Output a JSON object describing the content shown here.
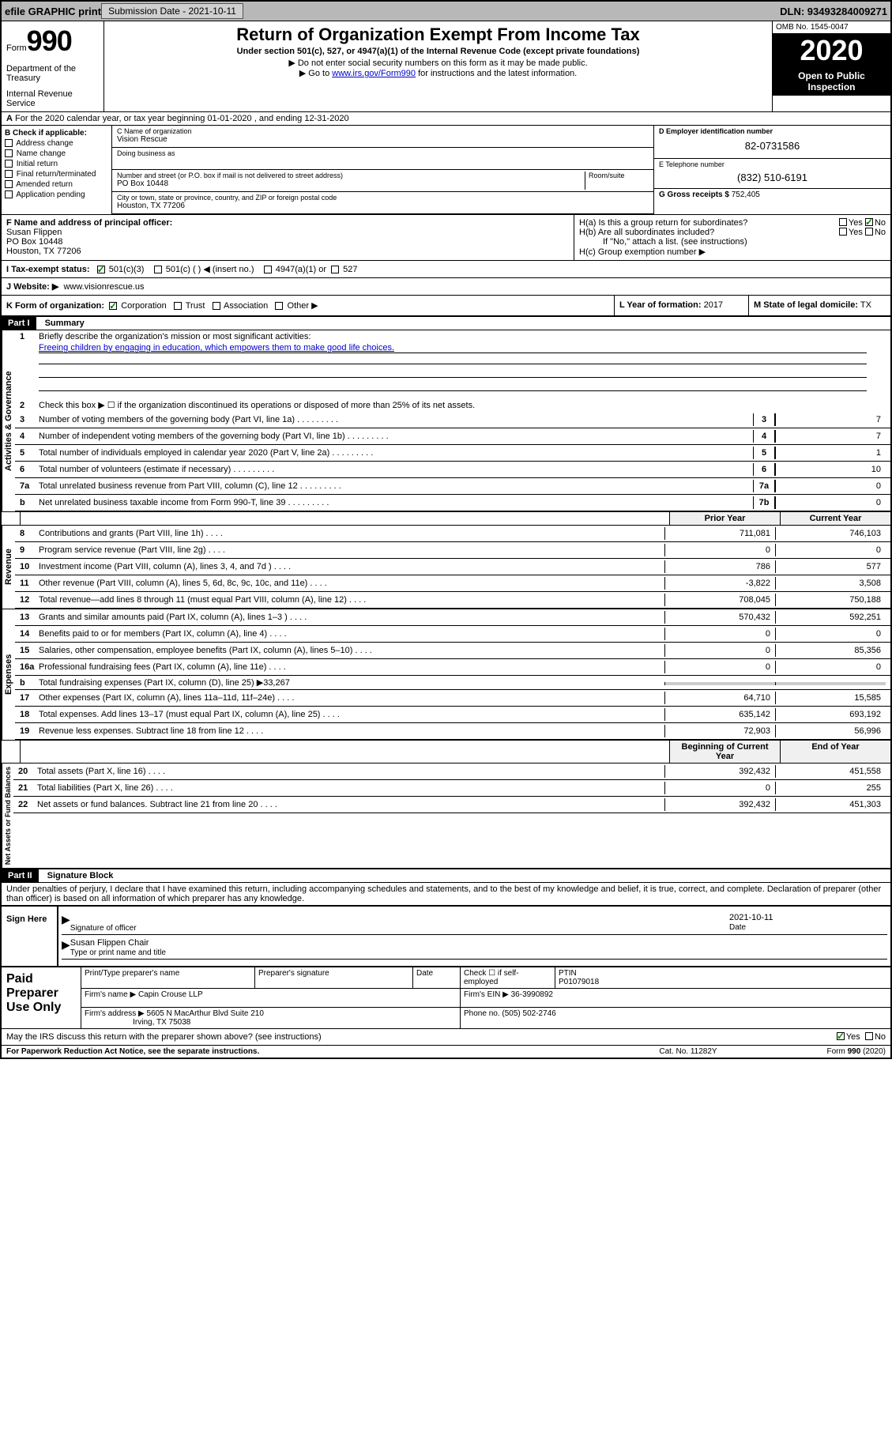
{
  "topbar": {
    "efile": "efile GRAPHIC print",
    "submission_label": "Submission Date - 2021-10-11",
    "dln": "DLN: 93493284009271"
  },
  "header": {
    "form_word": "Form",
    "form_num": "990",
    "title": "Return of Organization Exempt From Income Tax",
    "subtitle": "Under section 501(c), 527, or 4947(a)(1) of the Internal Revenue Code (except private foundations)",
    "note1": "▶ Do not enter social security numbers on this form as it may be made public.",
    "note2_pre": "▶ Go to ",
    "note2_link": "www.irs.gov/Form990",
    "note2_post": " for instructions and the latest information.",
    "dept": "Department of the Treasury",
    "irs": "Internal Revenue Service",
    "omb": "OMB No. 1545-0047",
    "year": "2020",
    "inspection": "Open to Public Inspection"
  },
  "line_a": "For the 2020 calendar year, or tax year beginning 01-01-2020    , and ending 12-31-2020",
  "section_b": {
    "label": "B Check if applicable:",
    "items": [
      "Address change",
      "Name change",
      "Initial return",
      "Final return/terminated",
      "Amended return",
      "Application pending"
    ]
  },
  "section_c": {
    "label": "C Name of organization",
    "org": "Vision Rescue",
    "dba_label": "Doing business as",
    "addr_label": "Number and street (or P.O. box if mail is not delivered to street address)",
    "room_label": "Room/suite",
    "addr": "PO Box 10448",
    "city_label": "City or town, state or province, country, and ZIP or foreign postal code",
    "city": "Houston, TX  77206"
  },
  "section_d": {
    "label": "D Employer identification number",
    "ein": "82-0731586",
    "tel_label": "E Telephone number",
    "tel": "(832) 510-6191",
    "gross_label": "G Gross receipts $",
    "gross": "752,405"
  },
  "section_f": {
    "label": "F  Name and address of principal officer:",
    "name": "Susan Flippen",
    "addr": "PO Box 10448",
    "city": "Houston, TX  77206"
  },
  "section_h": {
    "a": "H(a)  Is this a group return for subordinates?",
    "b": "H(b)  Are all subordinates included?",
    "b_note": "If \"No,\" attach a list. (see instructions)",
    "c": "H(c)  Group exemption number ▶",
    "yes": "Yes",
    "no": "No"
  },
  "tax_status": {
    "label": "I   Tax-exempt status:",
    "opt1": "501(c)(3)",
    "opt2": "501(c) (   ) ◀ (insert no.)",
    "opt3": "4947(a)(1) or",
    "opt4": "527"
  },
  "website": {
    "label": "J   Website: ▶",
    "val": "www.visionrescue.us"
  },
  "kform": {
    "label": "K Form of organization:",
    "opts": [
      "Corporation",
      "Trust",
      "Association",
      "Other ▶"
    ],
    "l_label": "L Year of formation:",
    "l_val": "2017",
    "m_label": "M State of legal domicile:",
    "m_val": "TX"
  },
  "part1": {
    "header": "Part I",
    "title": "Summary",
    "line1": "Briefly describe the organization's mission or most significant activities:",
    "mission": "Freeing children by engaging in education, which empowers them to make good life choices.",
    "line2": "Check this box ▶ ☐  if the organization discontinued its operations or disposed of more than 25% of its net assets.",
    "lines": [
      {
        "n": "3",
        "t": "Number of voting members of the governing body (Part VI, line 1a)",
        "box": "3",
        "v": "7"
      },
      {
        "n": "4",
        "t": "Number of independent voting members of the governing body (Part VI, line 1b)",
        "box": "4",
        "v": "7"
      },
      {
        "n": "5",
        "t": "Total number of individuals employed in calendar year 2020 (Part V, line 2a)",
        "box": "5",
        "v": "1"
      },
      {
        "n": "6",
        "t": "Total number of volunteers (estimate if necessary)",
        "box": "6",
        "v": "10"
      },
      {
        "n": "7a",
        "t": "Total unrelated business revenue from Part VIII, column (C), line 12",
        "box": "7a",
        "v": "0"
      },
      {
        "n": "b",
        "t": "Net unrelated business taxable income from Form 990-T, line 39",
        "box": "7b",
        "v": "0"
      }
    ],
    "prior_hdr": "Prior Year",
    "current_hdr": "Current Year",
    "rev_lines": [
      {
        "n": "8",
        "t": "Contributions and grants (Part VIII, line 1h)",
        "p": "711,081",
        "c": "746,103"
      },
      {
        "n": "9",
        "t": "Program service revenue (Part VIII, line 2g)",
        "p": "0",
        "c": "0"
      },
      {
        "n": "10",
        "t": "Investment income (Part VIII, column (A), lines 3, 4, and 7d )",
        "p": "786",
        "c": "577"
      },
      {
        "n": "11",
        "t": "Other revenue (Part VIII, column (A), lines 5, 6d, 8c, 9c, 10c, and 11e)",
        "p": "-3,822",
        "c": "3,508"
      },
      {
        "n": "12",
        "t": "Total revenue—add lines 8 through 11 (must equal Part VIII, column (A), line 12)",
        "p": "708,045",
        "c": "750,188"
      }
    ],
    "exp_lines": [
      {
        "n": "13",
        "t": "Grants and similar amounts paid (Part IX, column (A), lines 1–3 )",
        "p": "570,432",
        "c": "592,251"
      },
      {
        "n": "14",
        "t": "Benefits paid to or for members (Part IX, column (A), line 4)",
        "p": "0",
        "c": "0"
      },
      {
        "n": "15",
        "t": "Salaries, other compensation, employee benefits (Part IX, column (A), lines 5–10)",
        "p": "0",
        "c": "85,356"
      },
      {
        "n": "16a",
        "t": "Professional fundraising fees (Part IX, column (A), line 11e)",
        "p": "0",
        "c": "0"
      }
    ],
    "line16b": {
      "n": "b",
      "t": "Total fundraising expenses (Part IX, column (D), line 25) ▶33,267"
    },
    "exp_lines2": [
      {
        "n": "17",
        "t": "Other expenses (Part IX, column (A), lines 11a–11d, 11f–24e)",
        "p": "64,710",
        "c": "15,585"
      },
      {
        "n": "18",
        "t": "Total expenses. Add lines 13–17 (must equal Part IX, column (A), line 25)",
        "p": "635,142",
        "c": "693,192"
      },
      {
        "n": "19",
        "t": "Revenue less expenses. Subtract line 18 from line 12",
        "p": "72,903",
        "c": "56,996"
      }
    ],
    "begin_hdr": "Beginning of Current Year",
    "end_hdr": "End of Year",
    "net_lines": [
      {
        "n": "20",
        "t": "Total assets (Part X, line 16)",
        "p": "392,432",
        "c": "451,558"
      },
      {
        "n": "21",
        "t": "Total liabilities (Part X, line 26)",
        "p": "0",
        "c": "255"
      },
      {
        "n": "22",
        "t": "Net assets or fund balances. Subtract line 21 from line 20",
        "p": "392,432",
        "c": "451,303"
      }
    ],
    "sidebars": {
      "ag": "Activities & Governance",
      "rev": "Revenue",
      "exp": "Expenses",
      "net": "Net Assets or Fund Balances"
    }
  },
  "part2": {
    "header": "Part II",
    "title": "Signature Block",
    "declaration": "Under penalties of perjury, I declare that I have examined this return, including accompanying schedules and statements, and to the best of my knowledge and belief, it is true, correct, and complete. Declaration of preparer (other than officer) is based on all information of which preparer has any knowledge."
  },
  "sign": {
    "label": "Sign Here",
    "sig_label": "Signature of officer",
    "date_label": "Date",
    "date": "2021-10-11",
    "name": "Susan Flippen  Chair",
    "name_label": "Type or print name and title"
  },
  "preparer": {
    "label": "Paid Preparer Use Only",
    "print_label": "Print/Type preparer's name",
    "sig_label": "Preparer's signature",
    "date_label": "Date",
    "check_label": "Check ☐ if self-employed",
    "ptin_label": "PTIN",
    "ptin": "P01079018",
    "firm_label": "Firm's name    ▶",
    "firm": "Capin Crouse LLP",
    "ein_label": "Firm's EIN ▶",
    "ein": "36-3990892",
    "addr_label": "Firm's address ▶",
    "addr1": "5605 N MacArthur Blvd Suite 210",
    "addr2": "Irving, TX  75038",
    "phone_label": "Phone no.",
    "phone": "(505) 502-2746"
  },
  "discuss": {
    "text": "May the IRS discuss this return with the preparer shown above? (see instructions)",
    "yes": "Yes",
    "no": "No"
  },
  "footer": {
    "left": "For Paperwork Reduction Act Notice, see the separate instructions.",
    "mid": "Cat. No. 11282Y",
    "right": "Form 990 (2020)"
  }
}
